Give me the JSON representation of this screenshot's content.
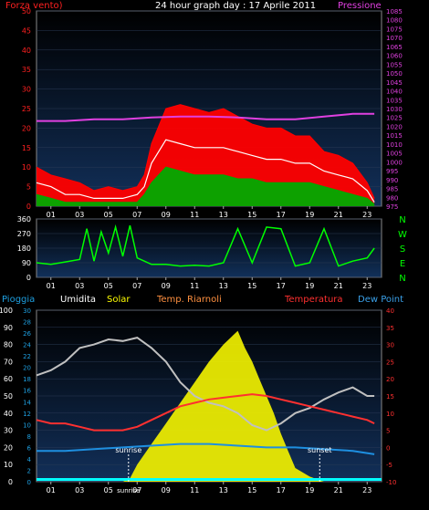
{
  "chart_data": [
    {
      "type": "line",
      "title": "24 hour graph day : 17 Aprile 2011",
      "left_label": "Forza vento)",
      "right_label": "Pressione",
      "hours": [
        "01",
        "03",
        "05",
        "07",
        "09",
        "11",
        "13",
        "15",
        "17",
        "19",
        "21",
        "23"
      ],
      "ylim_left": [
        0,
        50
      ],
      "yticks_left": [
        0,
        5,
        10,
        15,
        20,
        25,
        30,
        35,
        40,
        45,
        50
      ],
      "ylim_right": [
        975,
        1085
      ],
      "yticks_right": [
        975,
        980,
        985,
        990,
        995,
        1000,
        1005,
        1010,
        1015,
        1020,
        1025,
        1030,
        1035,
        1040,
        1045,
        1050,
        1055,
        1060,
        1065,
        1070,
        1075,
        1080,
        1085
      ],
      "series": [
        {
          "name": "Forza vento)",
          "color": "#ff0000",
          "x": [
            0,
            1,
            2,
            3,
            4,
            5,
            6,
            7,
            7.5,
            8,
            9,
            10,
            11,
            12,
            13,
            14,
            15,
            16,
            17,
            18,
            19,
            20,
            21,
            22,
            23,
            23.5
          ],
          "values": [
            10,
            8,
            7,
            6,
            4,
            5,
            4,
            5,
            8,
            16,
            25,
            26,
            25,
            24,
            25,
            23,
            21,
            20,
            20,
            18,
            18,
            14,
            13,
            11,
            6,
            2
          ]
        },
        {
          "name": "",
          "color": "#ffffff",
          "x": [
            0,
            1,
            2,
            3,
            4,
            5,
            6,
            7,
            7.5,
            8,
            9,
            10,
            11,
            12,
            13,
            14,
            15,
            16,
            17,
            18,
            19,
            20,
            21,
            22,
            23,
            23.5
          ],
          "values": [
            6,
            5,
            3,
            3,
            2,
            2,
            2,
            3,
            5,
            11,
            17,
            16,
            15,
            15,
            15,
            14,
            13,
            12,
            12,
            11,
            11,
            9,
            8,
            7,
            4,
            1
          ]
        },
        {
          "name": "",
          "color": "#00aa00",
          "x": [
            0,
            1,
            2,
            3,
            4,
            5,
            6,
            7,
            7.5,
            8,
            9,
            10,
            11,
            12,
            13,
            14,
            15,
            16,
            17,
            18,
            19,
            20,
            21,
            22,
            23,
            23.5
          ],
          "values": [
            3,
            2,
            1,
            1,
            1,
            1,
            1,
            1,
            3,
            6,
            10,
            9,
            8,
            8,
            8,
            7,
            7,
            6,
            6,
            6,
            6,
            5,
            4,
            3,
            2,
            0.5
          ]
        },
        {
          "name": "Pressione",
          "color": "#e040e0",
          "x": [
            0,
            2,
            4,
            6,
            8,
            10,
            12,
            14,
            16,
            18,
            20,
            22,
            23.5
          ],
          "values": [
            1023,
            1023,
            1024,
            1024,
            1025,
            1025.5,
            1025.5,
            1025,
            1024,
            1024,
            1025.5,
            1027,
            1027
          ]
        }
      ]
    },
    {
      "type": "line",
      "hours": [
        "01",
        "03",
        "05",
        "07",
        "09",
        "11",
        "13",
        "15",
        "17",
        "19",
        "21",
        "23"
      ],
      "ylim": [
        0,
        360
      ],
      "yticks": [
        0,
        90,
        180,
        270,
        360
      ],
      "compass": [
        "N",
        "W",
        "S",
        "E",
        "N"
      ],
      "series": [
        {
          "name": "",
          "color": "#00ff00",
          "x": [
            0,
            1,
            2,
            3,
            3.5,
            4,
            4.5,
            5,
            5.5,
            6,
            6.5,
            7,
            7.5,
            8,
            9,
            10,
            11,
            12,
            13,
            14,
            15,
            16,
            17,
            18,
            19,
            20,
            21,
            22,
            23,
            23.5
          ],
          "values": [
            90,
            80,
            95,
            110,
            300,
            100,
            280,
            150,
            310,
            130,
            320,
            120,
            100,
            80,
            80,
            70,
            75,
            70,
            90,
            300,
            90,
            310,
            300,
            70,
            90,
            300,
            70,
            100,
            120,
            180
          ]
        }
      ]
    },
    {
      "type": "line",
      "legend": [
        "Pioggia",
        "Umidita",
        "Solar",
        "Temp. Riarnoli",
        "Temperatura",
        "Dew Point"
      ],
      "hours": [
        "01",
        "03",
        "05",
        "07",
        "09",
        "11",
        "13",
        "15",
        "17",
        "19",
        "21",
        "23"
      ],
      "sun_labels": [
        "sunrise",
        "sunrise",
        "sunset"
      ],
      "ylim_left": [
        0,
        100
      ],
      "yticks_left": [
        0,
        10,
        20,
        30,
        40,
        50,
        60,
        70,
        80,
        90,
        100
      ],
      "ylim_mid": [
        0,
        30
      ],
      "yticks_mid": [
        0,
        2,
        4,
        6,
        8,
        10,
        12,
        14,
        16,
        18,
        20,
        22,
        24,
        26,
        28,
        30
      ],
      "ylim_right": [
        -10,
        40
      ],
      "yticks_right": [
        -10,
        -5,
        0,
        5,
        10,
        15,
        20,
        25,
        30,
        35,
        40
      ],
      "series": [
        {
          "name": "Solar",
          "color": "#ffff00",
          "x": [
            0,
            6,
            6.5,
            7,
            8,
            9,
            10,
            11,
            12,
            13,
            14,
            14.5,
            15,
            15.5,
            16,
            16.5,
            17,
            17.5,
            18,
            19,
            20,
            21,
            23.5
          ],
          "values": [
            0,
            0,
            2,
            10,
            22,
            34,
            46,
            58,
            70,
            80,
            88,
            78,
            70,
            60,
            50,
            40,
            28,
            18,
            8,
            3,
            0,
            0,
            0
          ]
        },
        {
          "name": "Umidita",
          "color": "#c0c0c0",
          "x": [
            0,
            1,
            2,
            3,
            4,
            5,
            6,
            7,
            8,
            9,
            10,
            11,
            12,
            13,
            14,
            15,
            16,
            17,
            18,
            19,
            20,
            21,
            22,
            23,
            23.5
          ],
          "values": [
            62,
            65,
            70,
            78,
            80,
            83,
            82,
            84,
            78,
            70,
            58,
            50,
            46,
            44,
            40,
            33,
            30,
            34,
            40,
            43,
            48,
            52,
            55,
            50,
            50
          ]
        },
        {
          "name": "Temperatura",
          "color": "#ff3030",
          "x": [
            0,
            1,
            2,
            3,
            4,
            5,
            6,
            7,
            8,
            9,
            10,
            11,
            12,
            13,
            14,
            15,
            16,
            17,
            18,
            19,
            20,
            21,
            22,
            23,
            23.5
          ],
          "values": [
            8,
            7,
            7,
            6,
            5,
            5,
            5,
            6,
            8,
            10,
            12,
            13,
            14,
            14.5,
            15,
            15.5,
            15,
            14,
            13,
            12,
            11,
            10,
            9,
            8,
            7
          ]
        },
        {
          "name": "Dew Point",
          "color": "#1e8fe0",
          "x": [
            0,
            2,
            4,
            6,
            8,
            10,
            12,
            14,
            16,
            18,
            20,
            22,
            23.5
          ],
          "values": [
            -1,
            -1,
            -0.5,
            0,
            0.5,
            1,
            1,
            0.5,
            0,
            0,
            -0.5,
            -1,
            -2
          ]
        }
      ]
    }
  ]
}
